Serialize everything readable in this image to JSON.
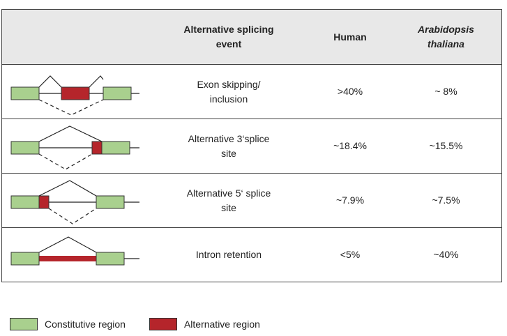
{
  "colors": {
    "constitutive": "#a9d08e",
    "alternative": "#b5252b",
    "header_bg": "#e8e8e8",
    "border": "#444444"
  },
  "header": {
    "event": "Alternative splicing event",
    "human": "Human",
    "arabidopsis": "Arabidopsis thaliana"
  },
  "rows": [
    {
      "event": "Exon skipping/ inclusion",
      "human": ">40%",
      "arabidopsis": "~ 8%",
      "diagram": "exon-skipping"
    },
    {
      "event": "Alternative 3‘splice site",
      "human": "~18.4%",
      "arabidopsis": "~15.5%",
      "diagram": "alt-3-splice"
    },
    {
      "event": "Alternative 5‘ splice site",
      "human": "~7.9%",
      "arabidopsis": "~7.5%",
      "diagram": "alt-5-splice"
    },
    {
      "event": "Intron retention",
      "human": "<5%",
      "arabidopsis": "~40%",
      "diagram": "intron-retention"
    }
  ],
  "legend": {
    "constitutive": "Constitutive region",
    "alternative": "Alternative region"
  }
}
